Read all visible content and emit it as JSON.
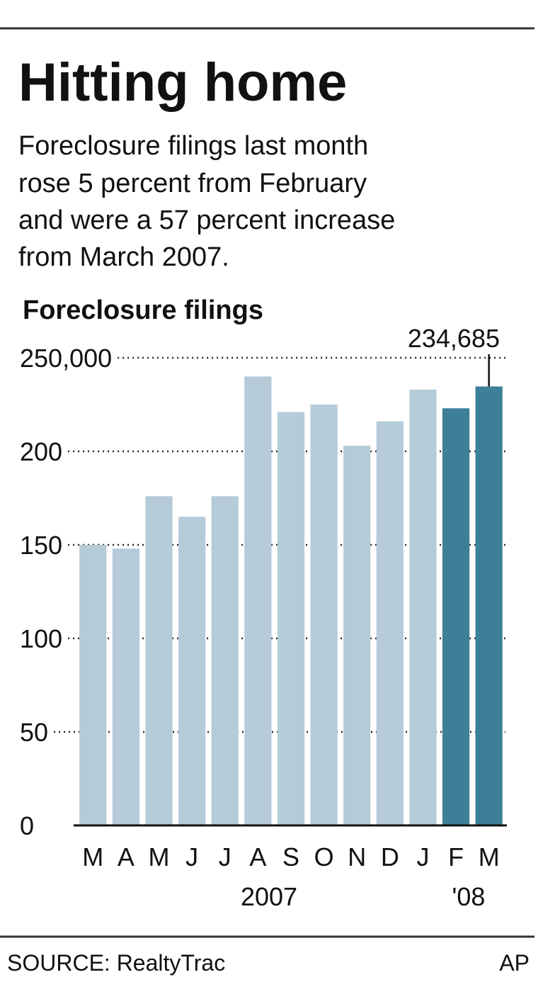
{
  "chart_data": {
    "type": "bar",
    "title": "Hitting home",
    "subtitle": [
      "Foreclosure filings last month",
      "rose 5 percent from February",
      "and were a 57 percent increase",
      "from March 2007."
    ],
    "y_label": "Foreclosure filings",
    "categories": [
      "M",
      "A",
      "M",
      "J",
      "J",
      "A",
      "S",
      "O",
      "N",
      "D",
      "J",
      "F",
      "M"
    ],
    "x_groups": [
      "2007",
      "'08"
    ],
    "values": [
      150000,
      148000,
      176000,
      165000,
      176000,
      240000,
      221000,
      225000,
      203000,
      216000,
      233000,
      223000,
      234685
    ],
    "value_labels": [
      null,
      null,
      null,
      null,
      null,
      null,
      null,
      null,
      null,
      null,
      null,
      null,
      "234,685"
    ],
    "colors": [
      "#b5cbd8",
      "#b5cbd8",
      "#b5cbd8",
      "#b5cbd8",
      "#b5cbd8",
      "#b5cbd8",
      "#b5cbd8",
      "#b5cbd8",
      "#b5cbd8",
      "#b5cbd8",
      "#b5cbd8",
      "#3d7f99",
      "#3d7f99"
    ],
    "ylim": [
      0,
      250000
    ],
    "yticks": [
      0,
      {
        "value": 50000,
        "label": "50"
      },
      {
        "value": 100000,
        "label": "100"
      },
      {
        "value": 150000,
        "label": "150"
      },
      {
        "value": 200000,
        "label": "200"
      },
      {
        "value": 250000,
        "label": "250,000"
      }
    ],
    "grid": true,
    "source": "SOURCE: RealtyTrac",
    "credit": "AP"
  }
}
